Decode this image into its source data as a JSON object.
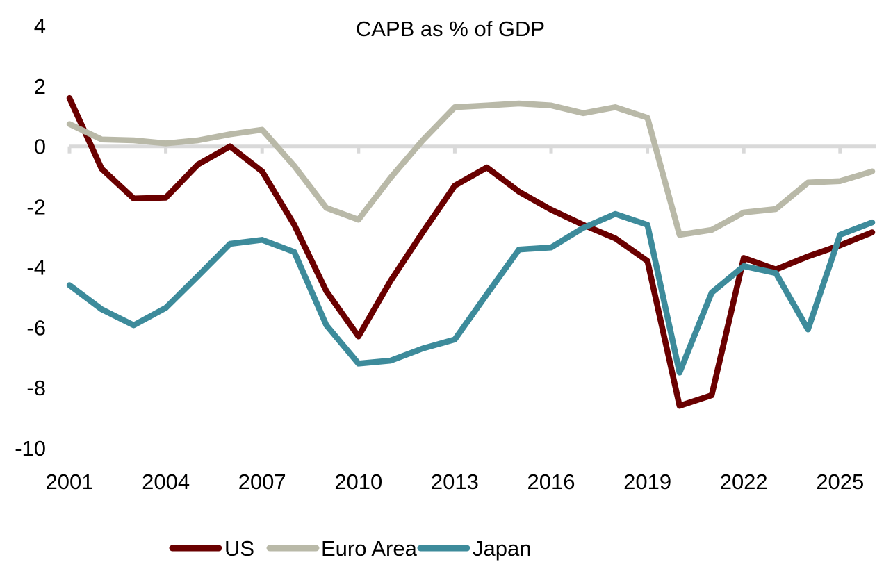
{
  "chart_data": {
    "type": "line",
    "title": "CAPB as % of GDP",
    "xlabel": "",
    "ylabel": "",
    "x": [
      2001,
      2002,
      2003,
      2004,
      2005,
      2006,
      2007,
      2008,
      2009,
      2010,
      2011,
      2012,
      2013,
      2014,
      2015,
      2016,
      2017,
      2018,
      2019,
      2020,
      2021,
      2022,
      2023,
      2024,
      2025,
      2026
    ],
    "xlim": [
      2001,
      2026
    ],
    "ylim": [
      -10,
      4
    ],
    "x_ticks": [
      "2001",
      "2004",
      "2007",
      "2010",
      "2013",
      "2016",
      "2019",
      "2022",
      "2025"
    ],
    "y_ticks": [
      "4",
      "2",
      "0",
      "-2",
      "-4",
      "-6",
      "-8",
      "-10"
    ],
    "grid": false,
    "zero_line": true,
    "legend_position": "bottom",
    "series": [
      {
        "name": "US",
        "color": "#6a0000",
        "values": [
          1.6,
          -0.74,
          -1.73,
          -1.7,
          -0.6,
          0.0,
          -0.83,
          -2.6,
          -4.8,
          -6.3,
          -4.46,
          -2.85,
          -1.3,
          -0.7,
          -1.5,
          -2.1,
          -2.6,
          -3.05,
          -3.8,
          -8.6,
          -8.25,
          -3.7,
          -4.08,
          -3.65,
          -3.28,
          -2.85
        ]
      },
      {
        "name": "Euro Area",
        "color": "#b9b9a8",
        "values": [
          0.74,
          0.23,
          0.2,
          0.1,
          0.2,
          0.4,
          0.55,
          -0.65,
          -2.04,
          -2.43,
          -1.04,
          0.2,
          1.3,
          1.36,
          1.42,
          1.36,
          1.1,
          1.3,
          0.95,
          -2.93,
          -2.77,
          -2.19,
          -2.08,
          -1.2,
          -1.15,
          -0.83
        ]
      },
      {
        "name": "Japan",
        "color": "#3d8b9b",
        "values": [
          -4.6,
          -5.4,
          -5.93,
          -5.35,
          -4.3,
          -3.23,
          -3.1,
          -3.5,
          -5.93,
          -7.2,
          -7.1,
          -6.7,
          -6.4,
          -4.9,
          -3.42,
          -3.35,
          -2.7,
          -2.24,
          -2.6,
          -7.5,
          -4.85,
          -3.97,
          -4.2,
          -6.07,
          -2.93,
          -2.52
        ]
      }
    ]
  }
}
